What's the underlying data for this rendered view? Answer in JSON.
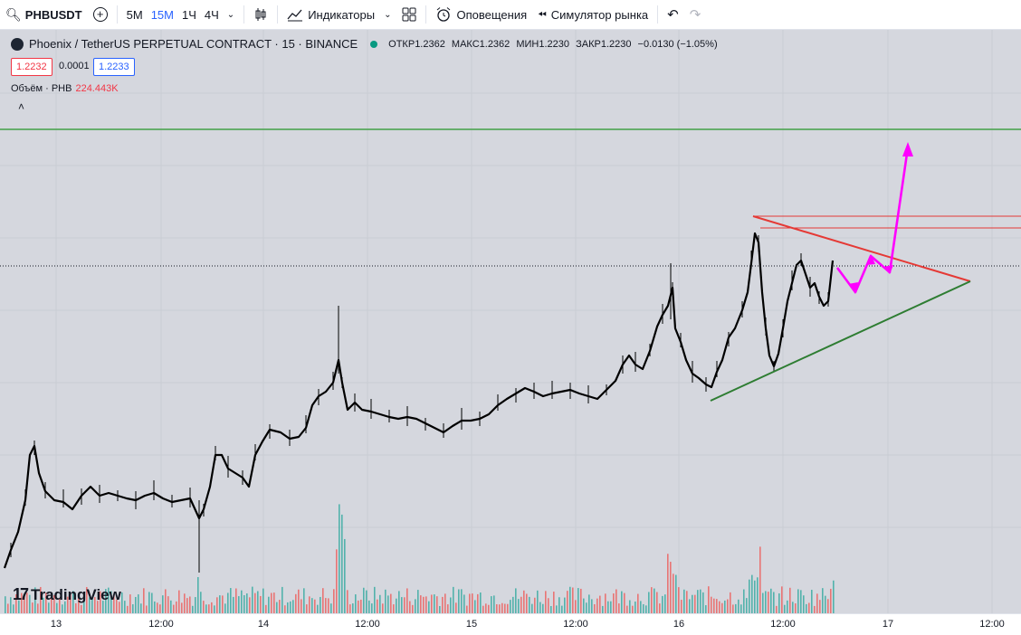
{
  "toolbar": {
    "ticker": "PHBUSDT",
    "intervals": [
      "5М",
      "15М",
      "1Ч",
      "4Ч"
    ],
    "active_interval": "15М",
    "indicators_label": "Индикаторы",
    "alerts_label": "Оповещения",
    "simulator_label": "Симулятор рынка"
  },
  "legend": {
    "title": "Phoenix / TetherUS PERPETUAL CONTRACT · 15 · BINANCE",
    "open_label": "ОТКР",
    "open": "1.2362",
    "high_label": "МАКС",
    "high": "1.2362",
    "low_label": "МИН",
    "low": "1.2230",
    "close_label": "ЗАКР",
    "close": "1.2230",
    "change": "−0.0130 (−1.05%)",
    "bid": "1.2232",
    "spread": "0.0001",
    "ask": "1.2233",
    "volume_label": "Объём · PHB",
    "volume_value": "224.443K"
  },
  "time_axis": [
    "13",
    "12:00",
    "14",
    "12:00",
    "15",
    "12:00",
    "16",
    "12:00",
    "17",
    "12:00"
  ],
  "brand": "TradingView",
  "colors": {
    "chart_bg": "#d5d7de",
    "candles": "#000000",
    "support_line": "#2e7d32",
    "resistance_line": "#e53935",
    "forecast": "#ff00ff",
    "volume_up": "#26a69a",
    "volume_down": "#ef5350",
    "bid": "#f23645",
    "ask": "#2962ff"
  },
  "chart_data": {
    "type": "line",
    "x": [
      "13",
      "12:00",
      "14",
      "12:00",
      "15",
      "12:00",
      "16",
      "12:00",
      "17"
    ],
    "title": "",
    "xlabel": "",
    "ylabel": "",
    "grid": true,
    "legend": "top-left"
  }
}
